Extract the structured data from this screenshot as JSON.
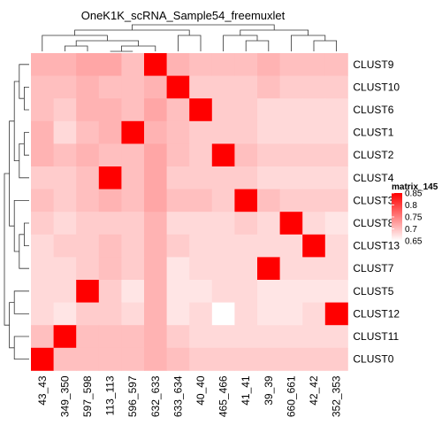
{
  "chart_data": {
    "type": "heatmap",
    "title": "OneK1K_scRNA_Sample54_freemuxlet",
    "columns": [
      "43_43",
      "349_350",
      "597_598",
      "113_113",
      "596_597",
      "632_633",
      "633_634",
      "40_40",
      "465_466",
      "41_41",
      "39_39",
      "660_661",
      "42_42",
      "352_353"
    ],
    "rows": [
      "CLUST9",
      "CLUST10",
      "CLUST6",
      "CLUST1",
      "CLUST2",
      "CLUST4",
      "CLUST3",
      "CLUST8",
      "CLUST13",
      "CLUST7",
      "CLUST5",
      "CLUST12",
      "CLUST11",
      "CLUST0"
    ],
    "values": [
      [
        0.71,
        0.71,
        0.72,
        0.72,
        0.7,
        0.86,
        0.71,
        0.7,
        0.7,
        0.7,
        0.71,
        0.7,
        0.7,
        0.7
      ],
      [
        0.7,
        0.7,
        0.71,
        0.7,
        0.7,
        0.71,
        0.86,
        0.69,
        0.69,
        0.69,
        0.7,
        0.69,
        0.69,
        0.69
      ],
      [
        0.7,
        0.69,
        0.71,
        0.71,
        0.7,
        0.72,
        0.7,
        0.86,
        0.69,
        0.69,
        0.68,
        0.68,
        0.68,
        0.68
      ],
      [
        0.71,
        0.68,
        0.7,
        0.71,
        0.86,
        0.71,
        0.7,
        0.69,
        0.69,
        0.69,
        0.68,
        0.68,
        0.68,
        0.68
      ],
      [
        0.71,
        0.7,
        0.71,
        0.7,
        0.7,
        0.72,
        0.7,
        0.69,
        0.86,
        0.7,
        0.69,
        0.69,
        0.69,
        0.69
      ],
      [
        0.69,
        0.69,
        0.7,
        0.86,
        0.7,
        0.72,
        0.69,
        0.69,
        0.69,
        0.69,
        0.68,
        0.68,
        0.68,
        0.68
      ],
      [
        0.7,
        0.69,
        0.7,
        0.71,
        0.7,
        0.72,
        0.7,
        0.7,
        0.69,
        0.86,
        0.7,
        0.69,
        0.69,
        0.69
      ],
      [
        0.69,
        0.68,
        0.69,
        0.69,
        0.69,
        0.71,
        0.68,
        0.68,
        0.68,
        0.69,
        0.68,
        0.86,
        0.68,
        0.67
      ],
      [
        0.68,
        0.69,
        0.69,
        0.7,
        0.69,
        0.71,
        0.69,
        0.68,
        0.68,
        0.68,
        0.68,
        0.68,
        0.86,
        0.68
      ],
      [
        0.68,
        0.68,
        0.69,
        0.7,
        0.69,
        0.71,
        0.67,
        0.68,
        0.68,
        0.68,
        0.86,
        0.68,
        0.68,
        0.68
      ],
      [
        0.68,
        0.68,
        0.86,
        0.69,
        0.67,
        0.71,
        0.67,
        0.67,
        0.68,
        0.68,
        0.67,
        0.67,
        0.67,
        0.67
      ],
      [
        0.68,
        0.67,
        0.69,
        0.69,
        0.68,
        0.71,
        0.67,
        0.68,
        0.65,
        0.68,
        0.67,
        0.67,
        0.68,
        0.86
      ],
      [
        0.7,
        0.86,
        0.7,
        0.7,
        0.7,
        0.71,
        0.69,
        0.68,
        0.68,
        0.68,
        0.68,
        0.68,
        0.68,
        0.68
      ],
      [
        0.86,
        0.7,
        0.7,
        0.7,
        0.7,
        0.71,
        0.7,
        0.69,
        0.69,
        0.69,
        0.69,
        0.69,
        0.69,
        0.69
      ]
    ],
    "legend": {
      "title": "matrix_145",
      "breaks": [
        0.85,
        0.8,
        0.75,
        0.7,
        0.65
      ],
      "labels": [
        "0.85",
        "0.8",
        "0.75",
        "0.7",
        "0.65"
      ],
      "color_low": "#ffffff",
      "color_high": "#ff0000",
      "placement": "right"
    },
    "column_dendrogram": true,
    "row_dendrogram": true
  }
}
